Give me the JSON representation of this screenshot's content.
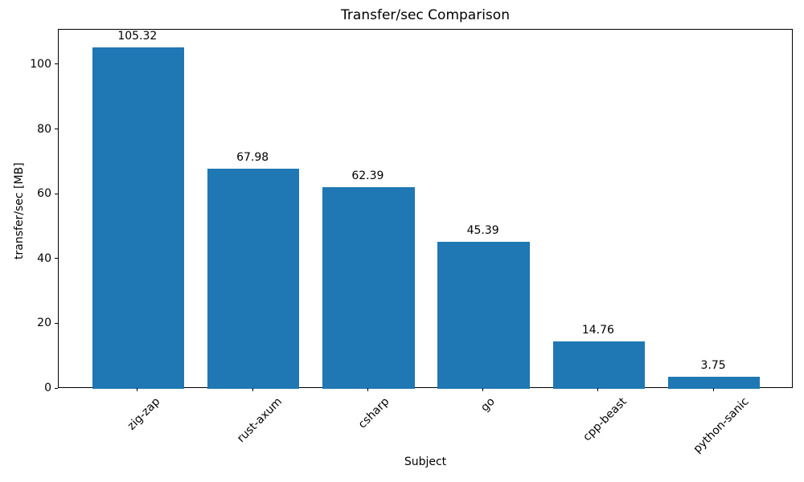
{
  "chart_data": {
    "type": "bar",
    "title": "Transfer/sec Comparison",
    "xlabel": "Subject",
    "ylabel": "transfer/sec [MB]",
    "categories": [
      "zig-zap",
      "rust-axum",
      "csharp",
      "go",
      "cpp-beast",
      "python-sanic"
    ],
    "values": [
      105.32,
      67.98,
      62.39,
      45.39,
      14.76,
      3.75
    ],
    "value_labels": [
      "105.32",
      "67.98",
      "62.39",
      "45.39",
      "14.76",
      "3.75"
    ],
    "y_ticks": [
      0,
      20,
      40,
      60,
      80,
      100
    ],
    "ylim": [
      0,
      110.9
    ],
    "xlim": [
      -0.69,
      5.69
    ],
    "bar_width": 0.8,
    "bar_color": "#1f77b4",
    "text_color": "#000000",
    "x_tick_rotation_deg": 45,
    "grid": false,
    "legend": false
  }
}
